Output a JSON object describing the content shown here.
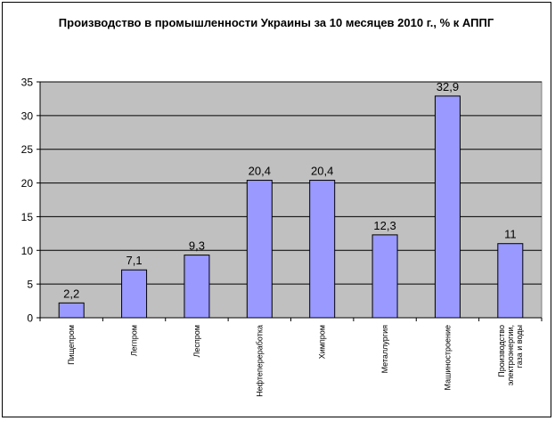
{
  "chart_data": {
    "type": "bar",
    "title": "Производство в промышленности Украины за 10 месяцев 2010 г., % к АППГ",
    "xlabel": "",
    "ylabel": "",
    "ylim": [
      0,
      35
    ],
    "yticks": [
      "0",
      "5",
      "10",
      "15",
      "20",
      "25",
      "30",
      "35"
    ],
    "grid": true,
    "legend": "none",
    "categories": [
      "Пищепром",
      "Легпром",
      "Леспром",
      "Нефтепереработка",
      "Химпром",
      "Металлургия",
      "Машиностроение",
      "Производство электроэнергии, газа и воды"
    ],
    "values": [
      2.2,
      7.1,
      9.3,
      20.4,
      20.4,
      12.3,
      32.9,
      11
    ],
    "data_labels": [
      "2,2",
      "7,1",
      "9,3",
      "20,4",
      "20,4",
      "12,3",
      "32,9",
      "11"
    ],
    "colors": {
      "bar_fill": "#9999FF",
      "bar_stroke": "#000000",
      "plot_background": "#C0C0C0",
      "grid_line": "#000000"
    }
  }
}
